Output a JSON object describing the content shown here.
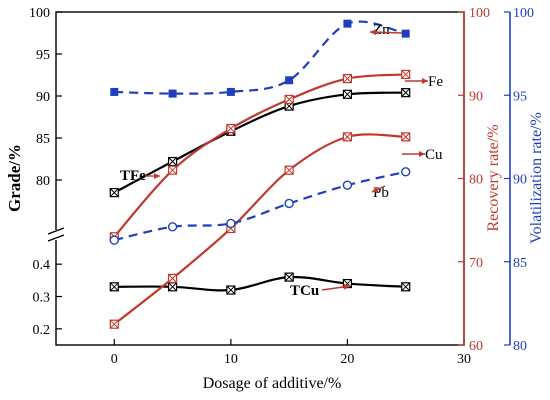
{
  "chart_data": {
    "type": "line",
    "xlabel": "Dosage of additive/%",
    "ylabel_left": "Grade/%",
    "ylabel_right1": "Recovery rate/%",
    "ylabel_right2": "Volatilization rate/%",
    "xlim": [
      -5,
      30
    ],
    "x_ticks": [
      "0",
      "10",
      "20",
      "30"
    ],
    "left_ticks_upper": [
      "80",
      "85",
      "90",
      "95",
      "100"
    ],
    "left_ticks_lower": [
      "0.2",
      "0.3",
      "0.4"
    ],
    "right1_ticks": [
      "60",
      "70",
      "80",
      "90",
      "100"
    ],
    "right2_ticks": [
      "80",
      "85",
      "90",
      "95",
      "100"
    ],
    "ylim_left_upper": [
      75,
      100
    ],
    "ylim_left_lower": [
      0.15,
      0.45
    ],
    "ylim_right1": [
      60,
      100
    ],
    "ylim_right2": [
      80,
      100
    ],
    "colors": {
      "left": "#000000",
      "right1": "#c0392b",
      "right2": "#1f3fbf"
    },
    "x": [
      0,
      5,
      10,
      15,
      20,
      25
    ],
    "series": [
      {
        "name": "TFe",
        "axis": "left",
        "values": [
          78.5,
          82.2,
          85.8,
          88.8,
          90.2,
          90.4
        ]
      },
      {
        "name": "TCu",
        "axis": "left",
        "values": [
          0.33,
          0.33,
          0.32,
          0.36,
          0.34,
          0.33
        ]
      },
      {
        "name": "Fe",
        "axis": "right1",
        "values": [
          73,
          81,
          86,
          89.5,
          92,
          92.5
        ]
      },
      {
        "name": "Cu",
        "axis": "right1",
        "values": [
          62.5,
          68,
          74,
          81,
          85,
          85
        ]
      },
      {
        "name": "Zn",
        "axis": "right2",
        "values": [
          95.2,
          95.1,
          95.2,
          95.9,
          99.3,
          98.7
        ]
      },
      {
        "name": "Pb",
        "axis": "right2",
        "values": [
          86.3,
          87.1,
          87.3,
          88.5,
          89.6,
          90.4
        ]
      }
    ]
  }
}
